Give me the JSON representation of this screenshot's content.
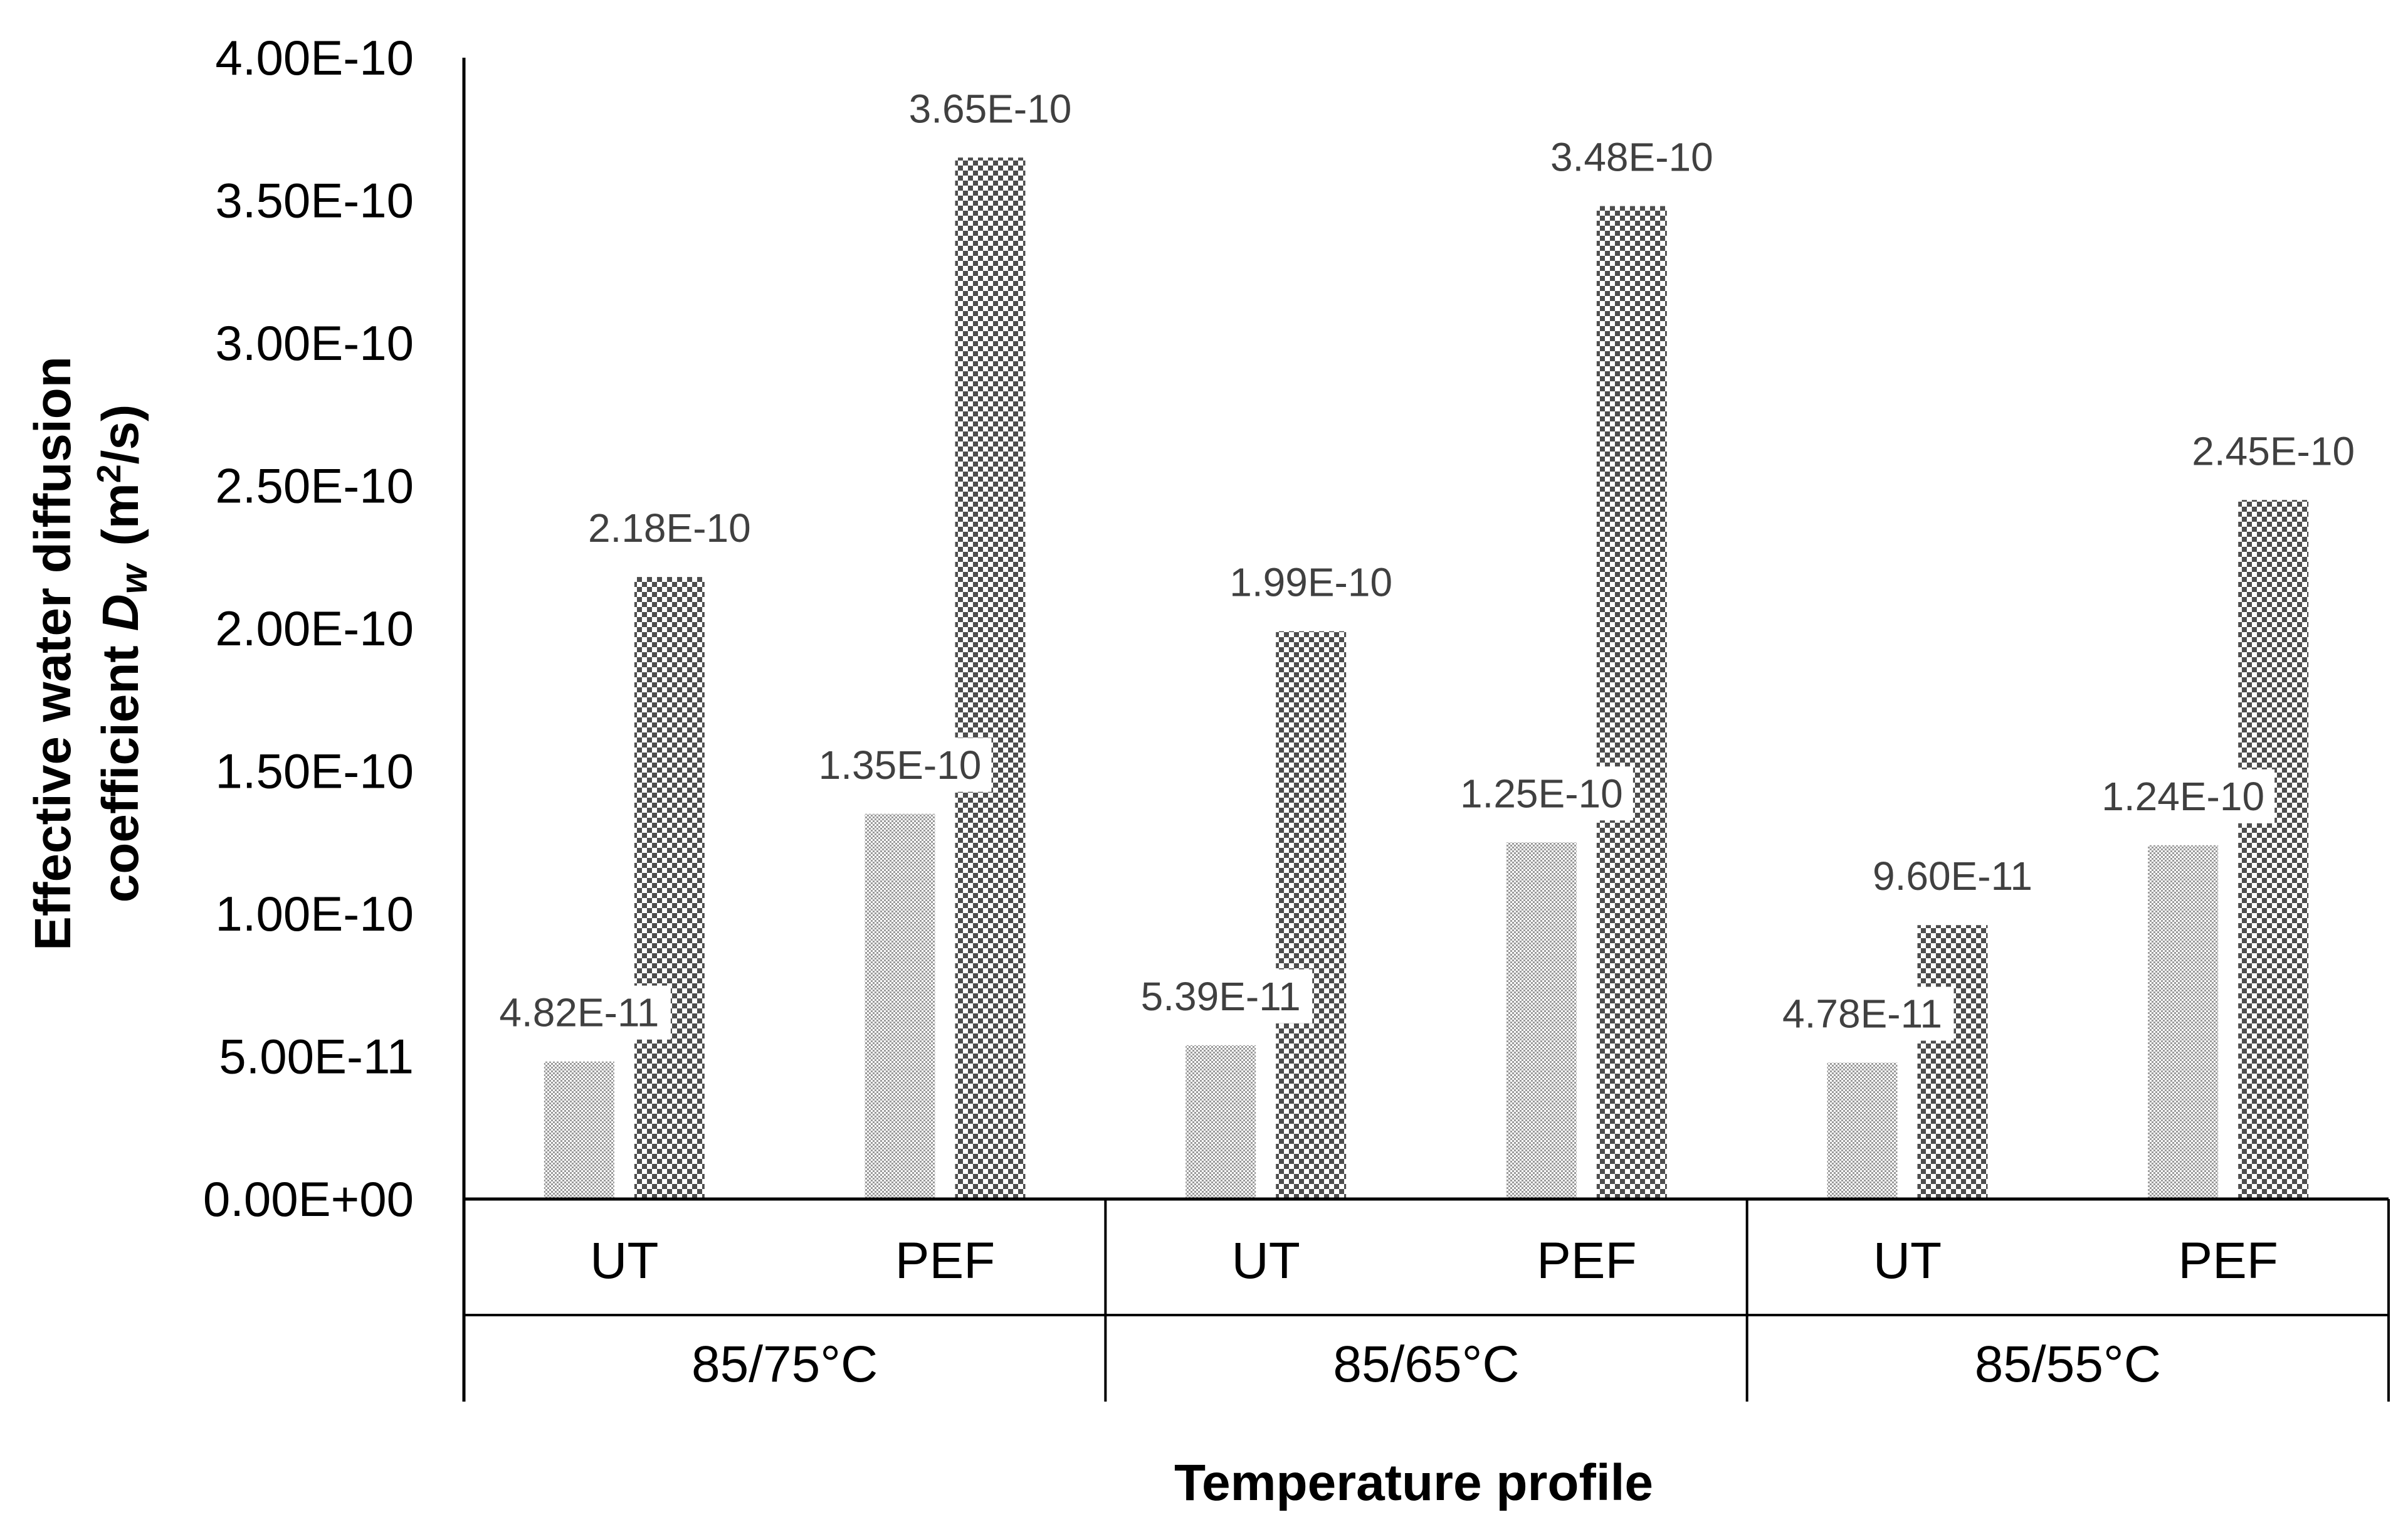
{
  "chart_data": {
    "type": "bar",
    "title": "",
    "xlabel": "Temperature profile",
    "ylabel": {
      "line1": "Effective water diffusion",
      "line2_prefix": "coefficient ",
      "symbol": "D",
      "subscript": "w",
      "units_prefix": "(m",
      "units_sup": "2",
      "units_suffix": "/s)"
    },
    "ylim": [
      0,
      4e-10
    ],
    "yticks": [
      {
        "value": 0,
        "label": "0.00E+00"
      },
      {
        "value": 5e-11,
        "label": "5.00E-11"
      },
      {
        "value": 1e-10,
        "label": "1.00E-10"
      },
      {
        "value": 1.5e-10,
        "label": "1.50E-10"
      },
      {
        "value": 2e-10,
        "label": "2.00E-10"
      },
      {
        "value": 2.5e-10,
        "label": "2.50E-10"
      },
      {
        "value": 3e-10,
        "label": "3.00E-10"
      },
      {
        "value": 3.5e-10,
        "label": "3.50E-10"
      },
      {
        "value": 4e-10,
        "label": "4.00E-10"
      }
    ],
    "groups": [
      {
        "label": "85/75°C",
        "categories": [
          {
            "label": "UT",
            "values": [
              4.82e-11,
              2.18e-10
            ],
            "labels": [
              "4.82E-11",
              "2.18E-10"
            ]
          },
          {
            "label": "PEF",
            "values": [
              1.35e-10,
              3.65e-10
            ],
            "labels": [
              "1.35E-10",
              "3.65E-10"
            ]
          }
        ]
      },
      {
        "label": "85/65°C",
        "categories": [
          {
            "label": "UT",
            "values": [
              5.39e-11,
              1.99e-10
            ],
            "labels": [
              "5.39E-11",
              "1.99E-10"
            ]
          },
          {
            "label": "PEF",
            "values": [
              1.25e-10,
              3.48e-10
            ],
            "labels": [
              "1.25E-10",
              "3.48E-10"
            ]
          }
        ]
      },
      {
        "label": "85/55°C",
        "categories": [
          {
            "label": "UT",
            "values": [
              4.78e-11,
              9.6e-11
            ],
            "labels": [
              "4.78E-11",
              "9.60E-11"
            ]
          },
          {
            "label": "PEF",
            "values": [
              1.24e-10,
              2.45e-10
            ],
            "labels": [
              "1.24E-10",
              "2.45E-10"
            ]
          }
        ]
      }
    ],
    "series_styles": [
      {
        "pattern": "fine-dots",
        "color": "#9a9a9a"
      },
      {
        "pattern": "checker",
        "color": "#4d4d4d"
      }
    ],
    "legend": "none",
    "grid": false
  }
}
